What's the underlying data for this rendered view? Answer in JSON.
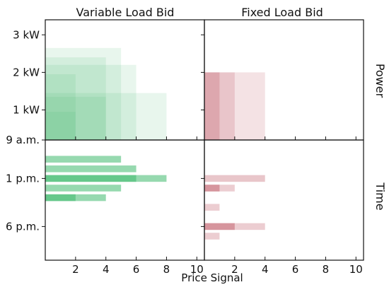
{
  "figure": {
    "titles": [
      "Variable Load Bid",
      "Fixed Load Bid"
    ],
    "row_labels": [
      "Power",
      "Time"
    ],
    "xlabel": "Price Signal"
  },
  "chart_data": [
    {
      "id": "variable-power",
      "type": "heatmap",
      "title": "Variable Load Bid",
      "ylabel": "Power",
      "xlim": [
        0,
        10.5
      ],
      "ylim": [
        0.2,
        3.4
      ],
      "xticks": [
        2,
        4,
        6,
        8,
        10
      ],
      "xtick_labels": [
        "",
        "",
        "",
        "",
        ""
      ],
      "yticks": [
        1,
        2,
        3
      ],
      "ytick_labels": [
        "1 kW",
        "2 kW",
        "3 kW"
      ],
      "color": "#3fb96e",
      "rects": [
        {
          "x0": 0,
          "x1": 5,
          "y0": 0.2,
          "y1": 2.65,
          "opacity": 0.12
        },
        {
          "x0": 0,
          "x1": 4,
          "y0": 0.2,
          "y1": 2.4,
          "opacity": 0.12
        },
        {
          "x0": 0,
          "x1": 6,
          "y0": 0.2,
          "y1": 2.2,
          "opacity": 0.12
        },
        {
          "x0": 0,
          "x1": 2,
          "y0": 0.2,
          "y1": 1.95,
          "opacity": 0.12
        },
        {
          "x0": 0,
          "x1": 8,
          "y0": 0.2,
          "y1": 1.45,
          "opacity": 0.12
        },
        {
          "x0": 0,
          "x1": 4,
          "y0": 0.2,
          "y1": 1.35,
          "opacity": 0.12
        },
        {
          "x0": 0,
          "x1": 2,
          "y0": 0.2,
          "y1": 0.95,
          "opacity": 0.12
        }
      ]
    },
    {
      "id": "fixed-power",
      "type": "heatmap",
      "title": "Fixed Load Bid",
      "xlim": [
        0,
        10.5
      ],
      "ylim": [
        0.2,
        3.4
      ],
      "xticks": [
        2,
        4,
        6,
        8,
        10
      ],
      "xtick_labels": [
        "",
        "",
        "",
        "",
        ""
      ],
      "yticks": [
        1,
        2,
        3
      ],
      "ytick_labels": [
        "",
        "",
        ""
      ],
      "color": "#c8707a",
      "rects": [
        {
          "x0": 0,
          "x1": 4,
          "y0": 0.2,
          "y1": 2.0,
          "opacity": 0.2
        },
        {
          "x0": 0,
          "x1": 2,
          "y0": 0.2,
          "y1": 2.0,
          "opacity": 0.25
        },
        {
          "x0": 0,
          "x1": 1,
          "y0": 0.2,
          "y1": 2.0,
          "opacity": 0.35
        }
      ]
    },
    {
      "id": "variable-time",
      "type": "bar",
      "xlabel": "Price Signal",
      "ylabel": "Time",
      "xlim": [
        0,
        10.5
      ],
      "ylim": [
        9,
        21.5
      ],
      "y_inverted": true,
      "xticks": [
        2,
        4,
        6,
        8,
        10
      ],
      "xtick_labels": [
        "2",
        "4",
        "6",
        "8",
        "10"
      ],
      "yticks": [
        9,
        13,
        18
      ],
      "ytick_labels": [
        "9 a.m.",
        "1 p.m.",
        "6 p.m."
      ],
      "color": "#3fb96e",
      "bar_height": 0.7,
      "bars": [
        {
          "y": 11,
          "x0": 0,
          "x1": 5,
          "opacity": 0.55
        },
        {
          "y": 12,
          "x0": 0,
          "x1": 6,
          "opacity": 0.55
        },
        {
          "y": 13,
          "x0": 0,
          "x1": 8,
          "opacity": 0.55
        },
        {
          "y": 13,
          "x0": 0,
          "x1": 6,
          "opacity": 0.55
        },
        {
          "y": 14,
          "x0": 0,
          "x1": 5,
          "opacity": 0.55
        },
        {
          "y": 15,
          "x0": 0,
          "x1": 4,
          "opacity": 0.55
        },
        {
          "y": 15,
          "x0": 0,
          "x1": 2,
          "opacity": 0.55
        }
      ]
    },
    {
      "id": "fixed-time",
      "type": "bar",
      "xlim": [
        0,
        10.5
      ],
      "ylim": [
        9,
        21.5
      ],
      "y_inverted": true,
      "xticks": [
        2,
        4,
        6,
        8,
        10
      ],
      "xtick_labels": [
        "2",
        "4",
        "6",
        "8",
        "10"
      ],
      "yticks": [
        9,
        13,
        18
      ],
      "ytick_labels": [
        "",
        "",
        ""
      ],
      "color": "#c8707a",
      "bar_height": 0.7,
      "bars": [
        {
          "y": 13,
          "x0": 0,
          "x1": 4,
          "opacity": 0.4
        },
        {
          "y": 14,
          "x0": 0,
          "x1": 2,
          "opacity": 0.35
        },
        {
          "y": 14,
          "x0": 0,
          "x1": 1,
          "opacity": 0.6
        },
        {
          "y": 16,
          "x0": 0,
          "x1": 1,
          "opacity": 0.35
        },
        {
          "y": 18,
          "x0": 0,
          "x1": 4,
          "opacity": 0.35
        },
        {
          "y": 18,
          "x0": 0,
          "x1": 2,
          "opacity": 0.6
        },
        {
          "y": 19,
          "x0": 0,
          "x1": 1,
          "opacity": 0.35
        }
      ]
    }
  ]
}
